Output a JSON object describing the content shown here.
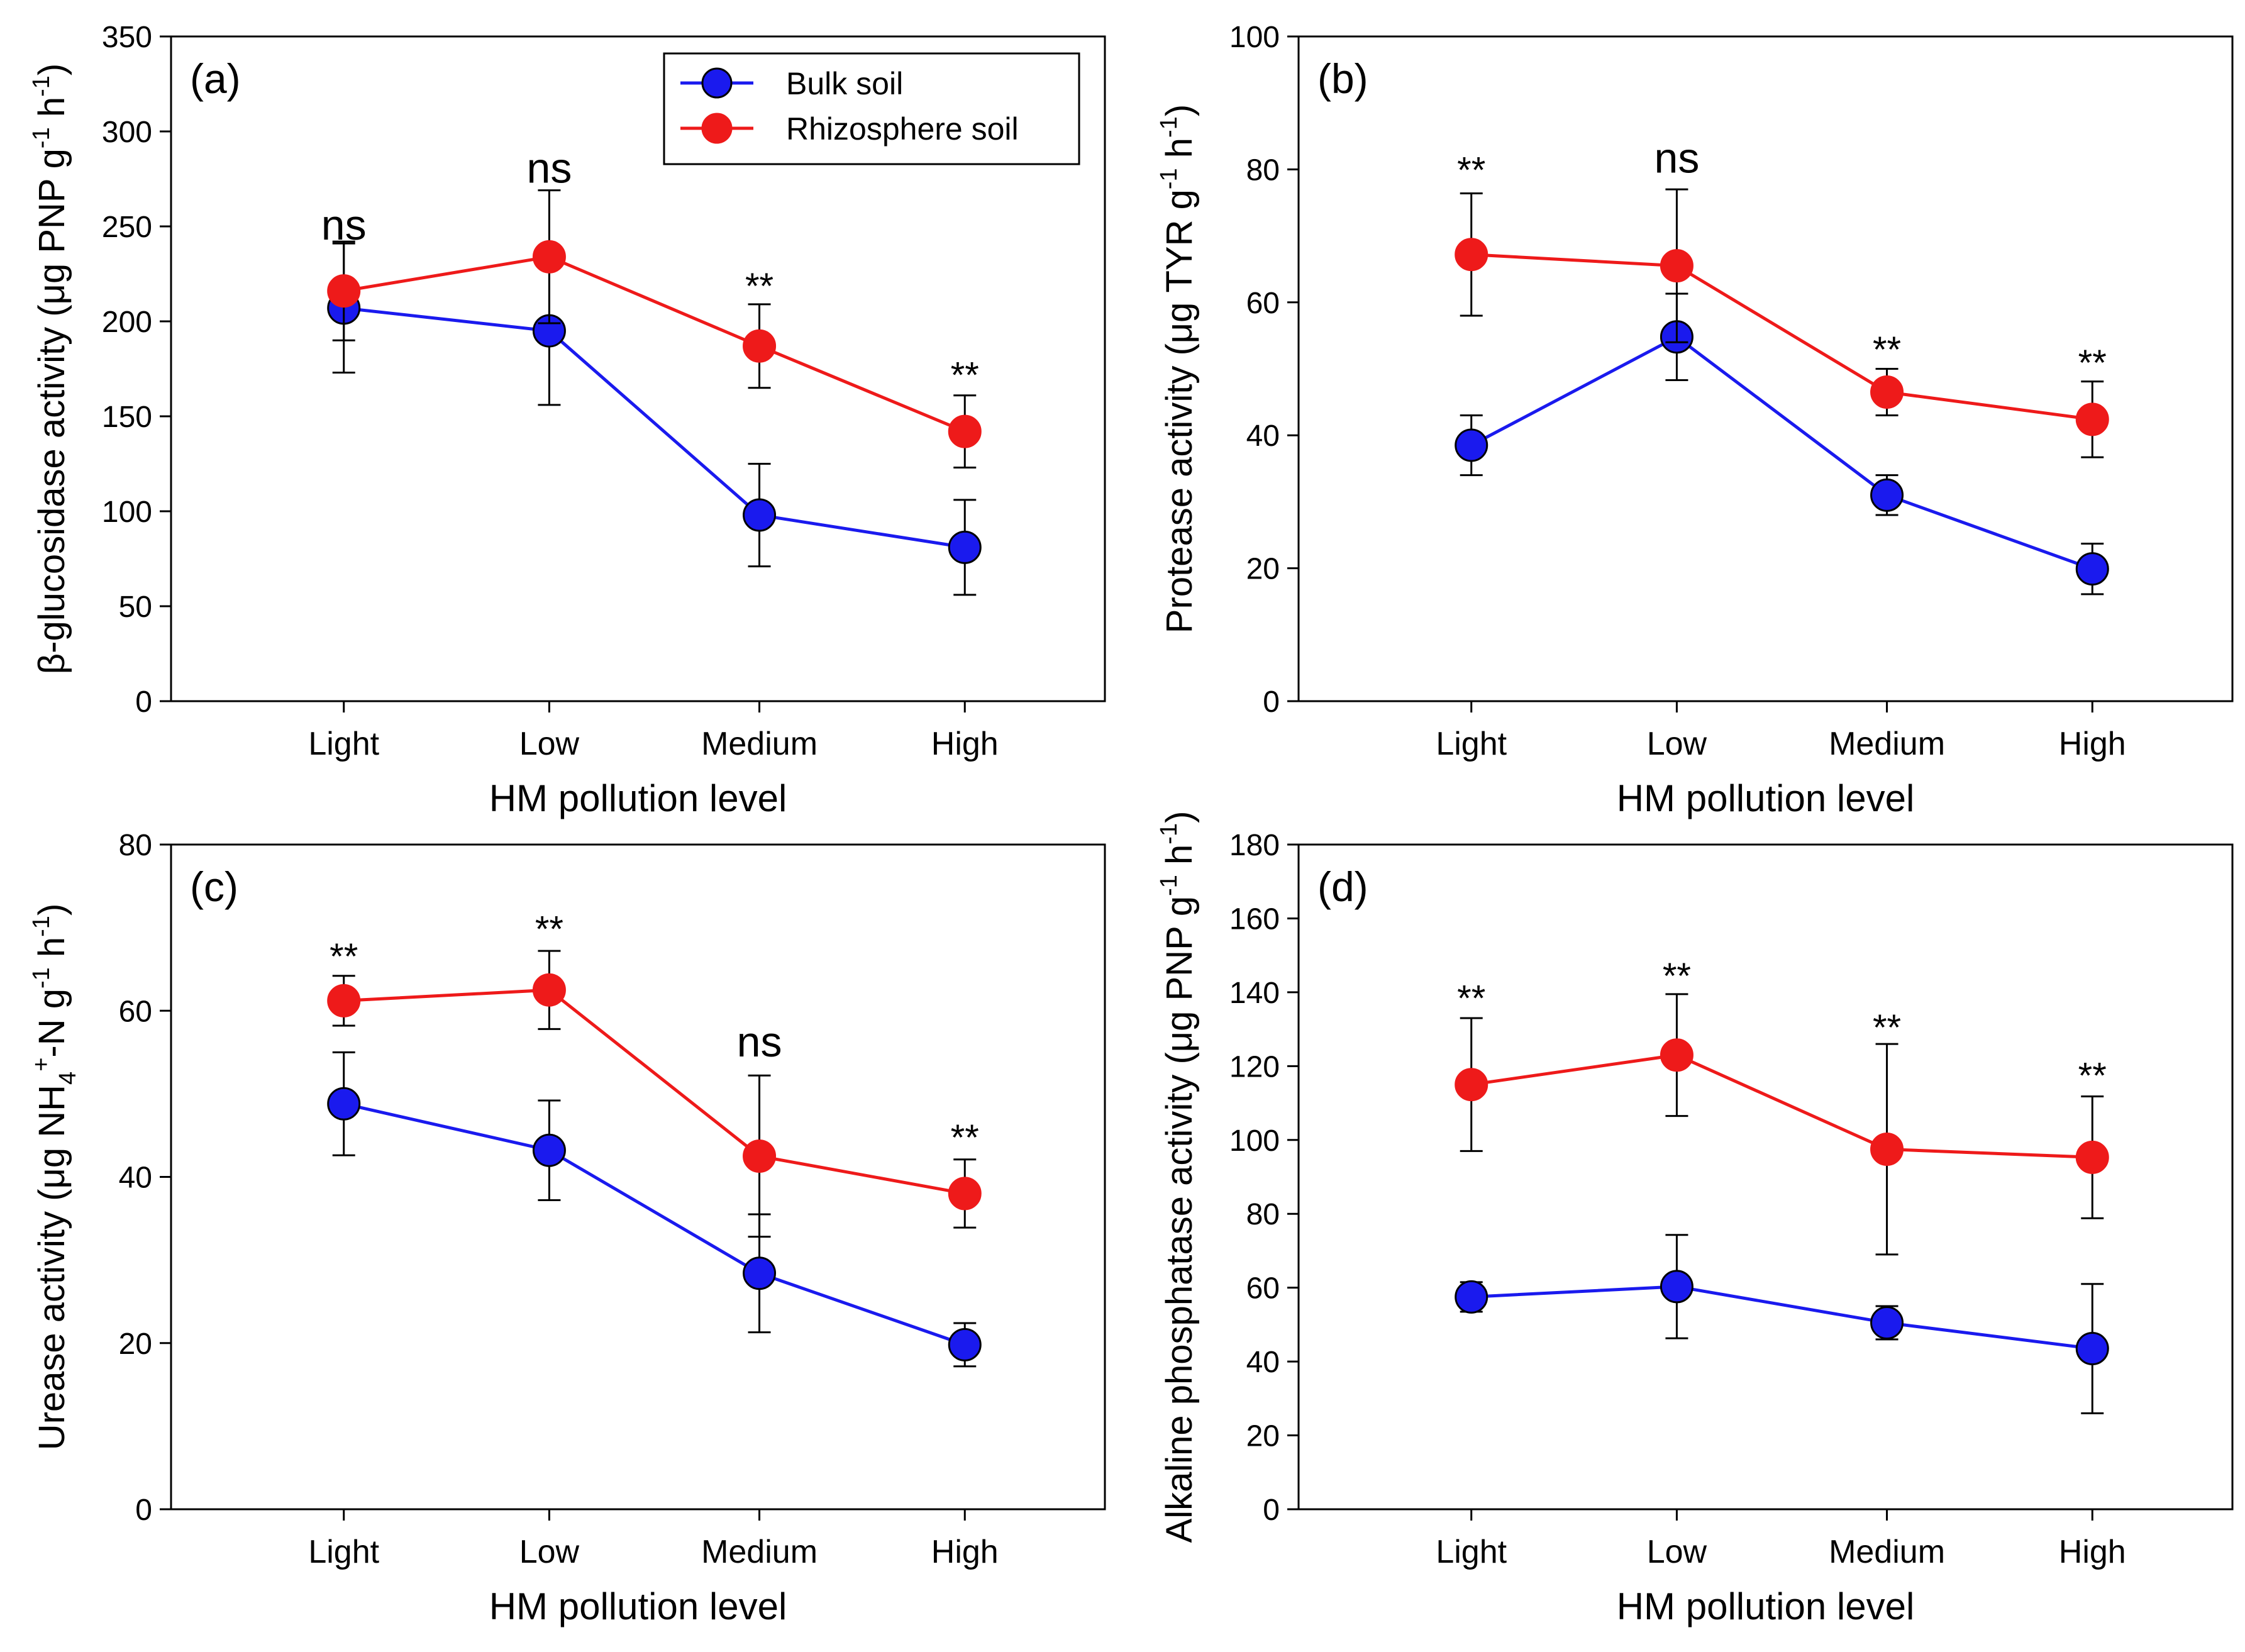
{
  "figure": {
    "legend": {
      "series": [
        {
          "name": "Bulk soil",
          "color": "#1a1aee"
        },
        {
          "name": "Rhizosphere soil",
          "color": "#ee1a1a"
        }
      ]
    }
  },
  "chart_data": [
    {
      "type": "line",
      "panel_label": "(a)",
      "categories": [
        "Light",
        "Low",
        "Medium",
        "High"
      ],
      "xlabel": "HM pollution level",
      "ylabel": "β-glucosidase activity (μg PNP g",
      "ylabel_sup1": "-1",
      "ylabel_mid": " h",
      "ylabel_sup2": "-1",
      "ylabel_end": ")",
      "ylim": [
        0,
        350
      ],
      "yticks": [
        0,
        50,
        100,
        150,
        200,
        250,
        300,
        350
      ],
      "legend_position": "top-right",
      "series": [
        {
          "name": "Bulk soil",
          "color": "#1a1aee",
          "values": [
            207,
            195,
            98,
            81
          ],
          "errors": [
            34,
            39,
            27,
            25
          ]
        },
        {
          "name": "Rhizosphere soil",
          "color": "#ee1a1a",
          "values": [
            216,
            234,
            187,
            142
          ],
          "errors": [
            26,
            35,
            22,
            19
          ]
        }
      ],
      "annotations": [
        "ns",
        "ns",
        "**",
        "**"
      ],
      "annotation_positions": [
        243,
        273,
        212,
        165
      ]
    },
    {
      "type": "line",
      "panel_label": "(b)",
      "categories": [
        "Light",
        "Low",
        "Medium",
        "High"
      ],
      "xlabel": "HM pollution level",
      "ylabel": "Protease activity (μg TYR g",
      "ylabel_sup1": "-1",
      "ylabel_mid": " h",
      "ylabel_sup2": "-1",
      "ylabel_end": ")",
      "ylim": [
        0,
        100
      ],
      "yticks": [
        0,
        20,
        40,
        60,
        80,
        100
      ],
      "series": [
        {
          "name": "Bulk soil",
          "color": "#1a1aee",
          "values": [
            38.5,
            54.8,
            31.0,
            19.9
          ],
          "errors": [
            4.5,
            6.5,
            3.0,
            3.8
          ]
        },
        {
          "name": "Rhizosphere soil",
          "color": "#ee1a1a",
          "values": [
            67.2,
            65.5,
            46.5,
            42.4
          ],
          "errors": [
            9.2,
            11.5,
            3.5,
            5.7
          ]
        }
      ],
      "annotations": [
        "**",
        "ns",
        "**",
        "**"
      ],
      "annotation_positions": [
        78,
        79.5,
        51,
        49
      ]
    },
    {
      "type": "line",
      "panel_label": "(c)",
      "categories": [
        "Light",
        "Low",
        "Medium",
        "High"
      ],
      "xlabel": "HM pollution level",
      "ylabel": "Urease activity (μg NH",
      "ylabel_sub": "4",
      "ylabel_sup0": "+",
      "ylabel_after": "-N g",
      "ylabel_sup1": "-1",
      "ylabel_mid": " h",
      "ylabel_sup2": "-1",
      "ylabel_end": ")",
      "ylim": [
        0,
        80
      ],
      "yticks": [
        0,
        20,
        40,
        60,
        80
      ],
      "series": [
        {
          "name": "Bulk soil",
          "color": "#1a1aee",
          "values": [
            48.8,
            43.2,
            28.4,
            19.8
          ],
          "errors": [
            6.2,
            6.0,
            7.1,
            2.6
          ]
        },
        {
          "name": "Rhizosphere soil",
          "color": "#ee1a1a",
          "values": [
            61.2,
            62.5,
            42.5,
            38.0
          ],
          "errors": [
            3.0,
            4.7,
            9.7,
            4.1
          ]
        }
      ],
      "annotations": [
        "**",
        "**",
        "ns",
        "**"
      ],
      "annotation_positions": [
        65,
        68.3,
        54.5,
        43.2
      ]
    },
    {
      "type": "line",
      "panel_label": "(d)",
      "categories": [
        "Light",
        "Low",
        "Medium",
        "High"
      ],
      "xlabel": "HM pollution level",
      "ylabel": "Alkaline phosphatase activity (μg PNP g",
      "ylabel_sup1": "-1",
      "ylabel_mid": " h",
      "ylabel_sup2": "-1",
      "ylabel_end": ")",
      "ylim": [
        0,
        180
      ],
      "yticks": [
        0,
        20,
        40,
        60,
        80,
        100,
        120,
        140,
        160,
        180
      ],
      "series": [
        {
          "name": "Bulk soil",
          "color": "#1a1aee",
          "values": [
            57.5,
            60.3,
            50.5,
            43.5
          ],
          "errors": [
            4.0,
            14.0,
            4.5,
            17.5
          ]
        },
        {
          "name": "Rhizosphere soil",
          "color": "#ee1a1a",
          "values": [
            115,
            123,
            97.5,
            95.3
          ],
          "errors": [
            18,
            16.5,
            28.5,
            16.5
          ]
        }
      ],
      "annotations": [
        "**",
        "**",
        "**",
        "**"
      ],
      "annotation_positions": [
        135,
        141,
        127,
        114
      ]
    }
  ]
}
